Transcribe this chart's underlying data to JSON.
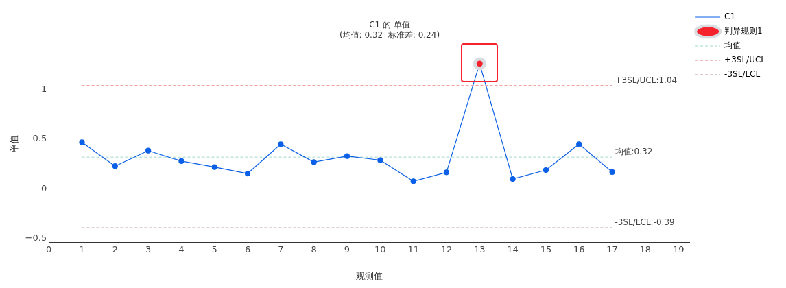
{
  "chart_data": {
    "type": "line",
    "title": "C1 的 单值",
    "subtitle": "(均值: 0.32  标准差: 0.24)",
    "xlabel": "观测值",
    "ylabel": "单值",
    "x": [
      1,
      2,
      3,
      4,
      5,
      6,
      7,
      8,
      9,
      10,
      11,
      12,
      13,
      14,
      15,
      16,
      17
    ],
    "series": [
      {
        "name": "C1",
        "color": "#0a5fe6",
        "values": [
          0.47,
          0.23,
          0.385,
          0.28,
          0.22,
          0.155,
          0.45,
          0.27,
          0.33,
          0.29,
          0.077,
          0.167,
          1.26,
          0.1,
          0.19,
          0.45,
          0.17
        ],
        "marker": "circle"
      },
      {
        "name": "判异规则1",
        "type": "scatter",
        "color": "#f5222d",
        "x": [
          13
        ],
        "values": [
          1.26
        ],
        "marker": "circle"
      }
    ],
    "ref_lines": [
      {
        "axis": "y",
        "value": 0,
        "color": "#e0e0e0",
        "line_style": "solid"
      },
      {
        "axis": "y",
        "value": 0.32,
        "label": "均值",
        "color": "#9fd8cb",
        "line_style": "dashed"
      },
      {
        "axis": "y",
        "value": 1.04,
        "label": "+3SL/UCL",
        "color": "#e88080",
        "line_style": "dashed"
      },
      {
        "axis": "y",
        "value": -0.39,
        "label": "-3SL/LCL",
        "color": "#c09090",
        "line_style": "dashed"
      }
    ],
    "xlim": [
      0,
      19.33
    ],
    "xticks": [
      0,
      1,
      2,
      3,
      4,
      5,
      6,
      7,
      8,
      9,
      10,
      11,
      12,
      13,
      14,
      15,
      16,
      17,
      18,
      19
    ],
    "ylim": [
      -0.54,
      1.44
    ],
    "yticks": [
      {
        "value": -0.5,
        "label": "−0.5"
      },
      0,
      0.5,
      1
    ],
    "annotations": [
      "均值:0.32",
      "+3SL/UCL:1.04",
      "-3SL/LCL:-0.39"
    ],
    "grid": false,
    "legend": "right",
    "line_style": "solid"
  }
}
